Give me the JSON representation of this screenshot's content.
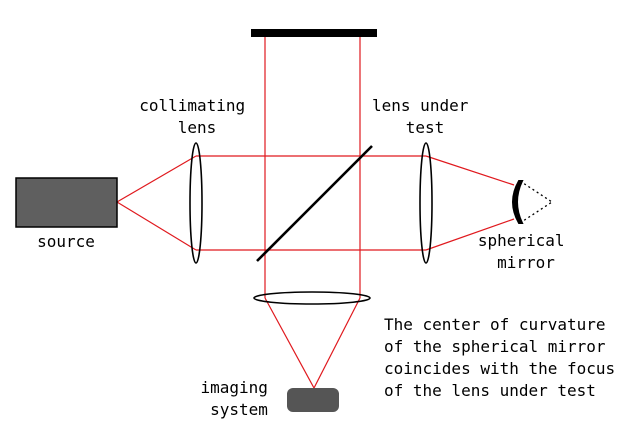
{
  "labels": {
    "collimating_lens": [
      "collimating",
      "lens"
    ],
    "lens_under_test": [
      "lens under",
      "test"
    ],
    "source": "source",
    "spherical_mirror": [
      "spherical",
      "mirror"
    ],
    "imaging_system": [
      "imaging",
      "system"
    ],
    "note": [
      "The center of curvature",
      "of the spherical mirror",
      "coincides with the focus",
      "of the lens under test"
    ]
  },
  "colors": {
    "beam": "#e0191e",
    "source_box": "#5f5f5f",
    "camera": "#555555",
    "ink": "#000000"
  }
}
